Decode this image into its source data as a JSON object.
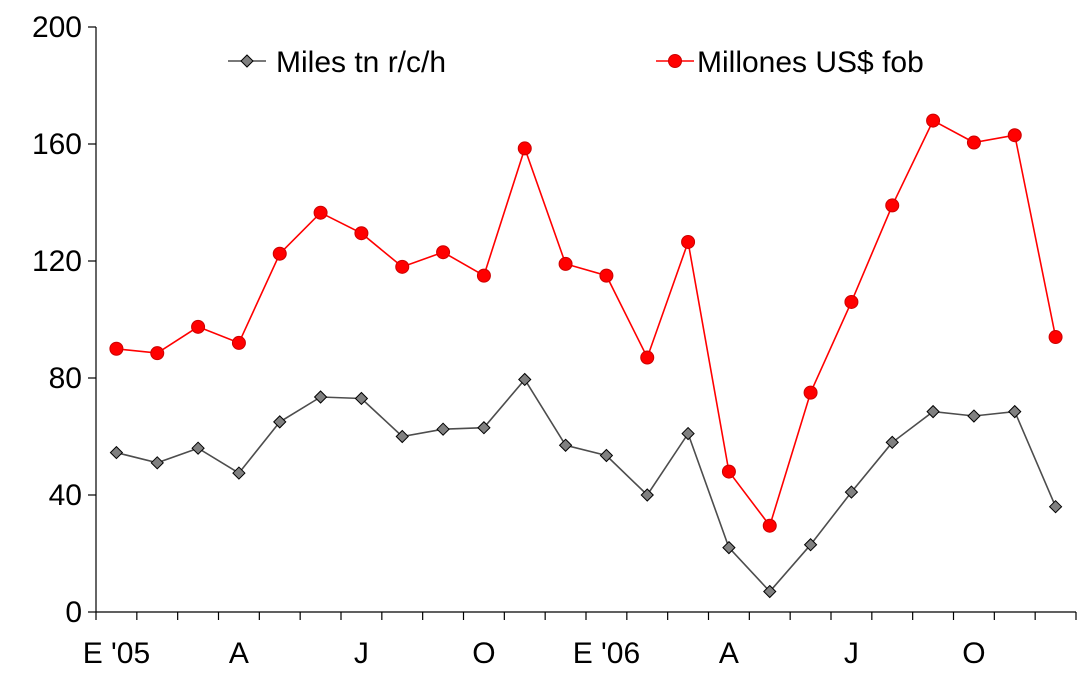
{
  "chart_data": {
    "type": "line",
    "title": "",
    "xlabel": "",
    "ylabel": "",
    "ylim": [
      0,
      200
    ],
    "yticks": [
      0,
      40,
      80,
      120,
      160,
      200
    ],
    "x": [
      "Jan 2005",
      "Feb 2005",
      "Mar 2005",
      "Apr 2005",
      "May 2005",
      "Jun 2005",
      "Jul 2005",
      "Aug 2005",
      "Sep 2005",
      "Oct 2005",
      "Nov 2005",
      "Dec 2005",
      "Jan 2006",
      "Feb 2006",
      "Mar 2006",
      "Apr 2006",
      "May 2006",
      "Jun 2006",
      "Jul 2006",
      "Aug 2006",
      "Sep 2006",
      "Oct 2006",
      "Nov 2006",
      "Dec 2006"
    ],
    "xtick_labels": [
      "E '05",
      "",
      "",
      "A",
      "",
      "",
      "J",
      "",
      "",
      "O",
      "",
      "",
      "E '06",
      "",
      "",
      "A",
      "",
      "",
      "J",
      "",
      "",
      "O",
      "",
      ""
    ],
    "grid": false,
    "legend_position": "top",
    "series": [
      {
        "name": "Miles tn r/c/h",
        "color": "#808080",
        "line_color": "#4d4d4d",
        "marker": "diamond",
        "values": [
          54.5,
          51,
          56,
          47.5,
          65,
          73.5,
          73,
          60,
          62.5,
          63,
          79.5,
          57,
          53.5,
          40,
          61,
          22,
          7,
          23,
          41,
          58,
          68.5,
          67,
          68.5,
          36
        ]
      },
      {
        "name": "Millones US$ fob",
        "color": "#ff0000",
        "line_color": "#ff0000",
        "marker": "circle",
        "values": [
          90,
          88.5,
          97.5,
          92,
          122.5,
          136.5,
          129.5,
          118,
          123,
          115,
          158.5,
          119,
          115,
          87,
          126.5,
          48,
          29.5,
          75,
          106,
          139,
          168,
          160.5,
          163,
          94
        ]
      }
    ]
  }
}
